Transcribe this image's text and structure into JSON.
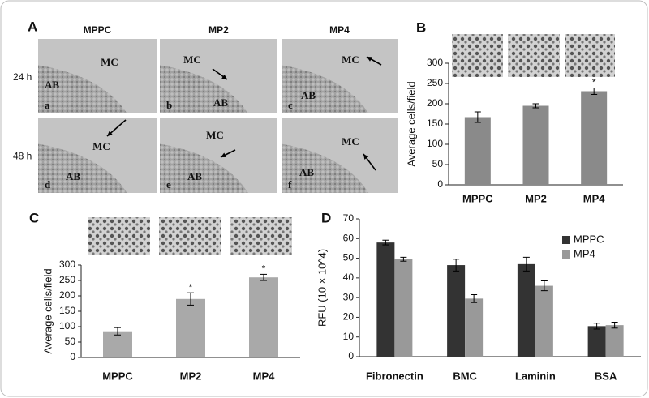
{
  "panel_a": {
    "label": "A",
    "columns": [
      "MPPC",
      "MP2",
      "MP4"
    ],
    "rows": [
      "24 h",
      "48 h"
    ],
    "cells": [
      {
        "letter": "a",
        "mc": "MC",
        "ab": "AB"
      },
      {
        "letter": "b",
        "mc": "MC",
        "ab": "AB"
      },
      {
        "letter": "c",
        "mc": "MC",
        "ab": "AB"
      },
      {
        "letter": "d",
        "mc": "MC",
        "ab": "AB"
      },
      {
        "letter": "e",
        "mc": "MC",
        "ab": "AB"
      },
      {
        "letter": "f",
        "mc": "MC",
        "ab": "AB"
      }
    ]
  },
  "chart_data": [
    {
      "panel": "B",
      "type": "bar",
      "y_label": "Average cells/field",
      "categories": [
        "MPPC",
        "MP2",
        "MP4"
      ],
      "values": [
        167,
        195,
        231
      ],
      "errors": [
        13,
        5,
        8
      ],
      "color": "#8a8a8a",
      "ylim": [
        0,
        300
      ],
      "yticks": [
        0,
        50,
        100,
        150,
        200,
        250,
        300
      ],
      "annotations": [
        {
          "index": 2,
          "text": "*"
        }
      ]
    },
    {
      "panel": "C",
      "type": "bar",
      "y_label": "Average cells/field",
      "categories": [
        "MPPC",
        "MP2",
        "MP4"
      ],
      "values": [
        85,
        190,
        260
      ],
      "errors": [
        12,
        20,
        10
      ],
      "color": "#a9a9a9",
      "ylim": [
        0,
        300
      ],
      "yticks": [
        0,
        50,
        100,
        150,
        200,
        250,
        300
      ],
      "annotations": [
        {
          "index": 1,
          "text": "*"
        },
        {
          "index": 2,
          "text": "*"
        }
      ]
    },
    {
      "panel": "D",
      "type": "grouped_bar",
      "y_label": "RFU (10 × 10^4)",
      "categories": [
        "Fibronectin",
        "BMC",
        "Laminin",
        "BSA"
      ],
      "series": [
        {
          "name": "MPPC",
          "color": "#333333",
          "values": [
            58,
            46.5,
            47,
            15.5
          ],
          "errors": [
            1.2,
            3,
            3.5,
            1.5
          ]
        },
        {
          "name": "MP4",
          "color": "#999999",
          "values": [
            49.5,
            29.5,
            36,
            16
          ],
          "errors": [
            1,
            2,
            2.5,
            1.5
          ]
        }
      ],
      "ylim": [
        0,
        70
      ],
      "yticks": [
        0,
        10,
        20,
        30,
        40,
        50,
        60,
        70
      ],
      "legend": "upper right"
    }
  ]
}
